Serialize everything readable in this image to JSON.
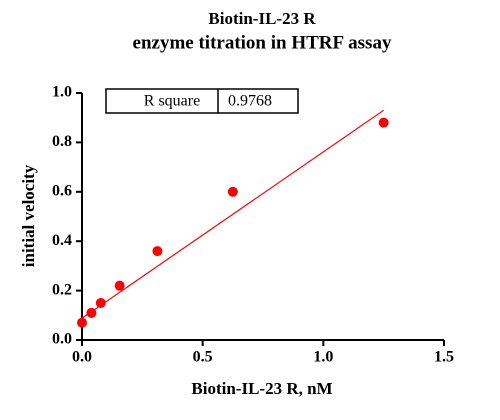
{
  "chart_data": {
    "type": "scatter",
    "title": "Biotin-IL-23 R",
    "subtitle": "enzyme titration in HTRF assay",
    "x_label": "Biotin-IL-23 R, nM",
    "y_label": "initial velocity",
    "series": [
      {
        "color": "#ff0000",
        "x": [
          0,
          0.039,
          0.078,
          0.156,
          0.3125,
          0.625,
          1.25
        ],
        "values": [
          0.07,
          0.11,
          0.15,
          0.22,
          0.36,
          0.6,
          0.88
        ]
      }
    ],
    "fit": {
      "color": "#ff0000",
      "x": [
        0,
        1.25
      ],
      "y": [
        0.088,
        0.93
      ]
    },
    "annotation": {
      "label": "R square",
      "value": "0.9768"
    },
    "xlim": [
      0,
      1.5
    ],
    "xticks": [
      {
        "value": 0,
        "label": "0.0"
      },
      0.5,
      {
        "value": 1,
        "label": "1.0"
      },
      1.5
    ],
    "ylim": [
      0,
      1
    ],
    "yticks": [
      {
        "value": 0,
        "label": "0.0"
      },
      0.2,
      0.4,
      0.6,
      0.8,
      {
        "value": 1,
        "label": "1.0"
      }
    ],
    "grid": false
  }
}
